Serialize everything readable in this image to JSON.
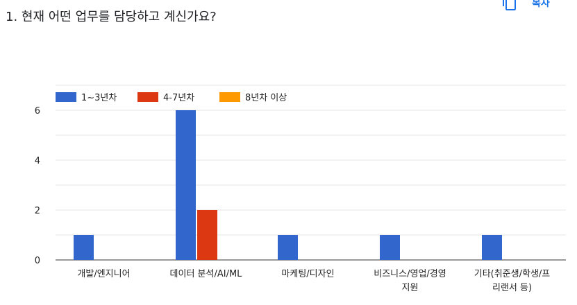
{
  "question": {
    "title": "1. 현재 어떤 업무를 담당하고 계신가요?"
  },
  "toolbar": {
    "copy_label": "복사",
    "copy_icon": "copy-icon"
  },
  "colors": {
    "series_1": "#3366cc",
    "series_2": "#dc3912",
    "series_3": "#ff9900",
    "grid": "#e6e6e6",
    "axis": "#333333",
    "link": "#1a73e8"
  },
  "chart_data": {
    "type": "bar",
    "categories": [
      [
        "개발/엔지니어"
      ],
      [
        "데이터 분석/AI/ML"
      ],
      [
        "마케팅/디자인"
      ],
      [
        "비즈니스/영업/경영",
        "지원"
      ],
      [
        "기타(취준생/학생/프",
        "리랜서 등)"
      ]
    ],
    "series": [
      {
        "name": "1~3년차",
        "values": [
          1,
          6,
          1,
          1,
          1
        ]
      },
      {
        "name": "4-7년차",
        "values": [
          0,
          2,
          0,
          0,
          0
        ]
      },
      {
        "name": "8년차 이상",
        "values": [
          0,
          0,
          0,
          0,
          0
        ]
      }
    ],
    "yticks": [
      0,
      2,
      4,
      6
    ],
    "ylim": [
      0,
      7
    ],
    "grid": true,
    "legend_position": "top-left",
    "title": "",
    "xlabel": "",
    "ylabel": ""
  }
}
